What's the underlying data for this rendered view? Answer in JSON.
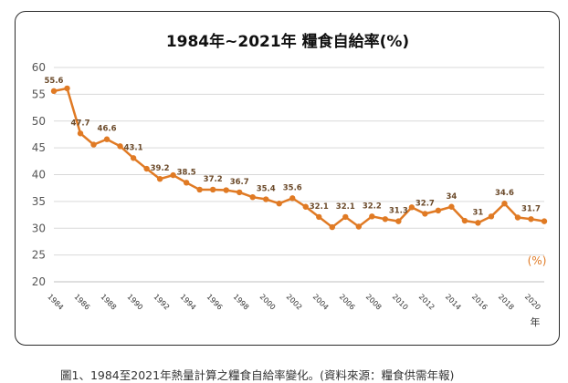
{
  "chart_data": {
    "type": "line",
    "title": "1984年~2021年  糧食自給率(%)",
    "unit": "(%)",
    "xlabel": "年",
    "ylabel": "",
    "ylim": [
      20,
      60
    ],
    "ytick_step": 5,
    "grid": true,
    "line_color": "#e07a24",
    "x": [
      1984,
      1985,
      1986,
      1987,
      1988,
      1989,
      1990,
      1991,
      1992,
      1993,
      1994,
      1995,
      1996,
      1997,
      1998,
      1999,
      2000,
      2001,
      2002,
      2003,
      2004,
      2005,
      2006,
      2007,
      2008,
      2009,
      2010,
      2011,
      2012,
      2013,
      2014,
      2015,
      2016,
      2017,
      2018,
      2019,
      2020,
      2021
    ],
    "x_tick_labels": [
      "1984",
      "1986",
      "1988",
      "1990",
      "1992",
      "1994",
      "1996",
      "1998",
      "2000",
      "2002",
      "2004",
      "2006",
      "2008",
      "2010",
      "2012",
      "2014",
      "2016",
      "2018",
      "2020"
    ],
    "series": [
      {
        "values": [
          55.6,
          56.1,
          47.7,
          45.6,
          46.6,
          45.3,
          43.1,
          41.1,
          39.2,
          39.9,
          38.5,
          37.2,
          37.2,
          37.1,
          36.7,
          35.8,
          35.4,
          34.6,
          35.6,
          34.0,
          32.1,
          30.2,
          32.1,
          30.3,
          32.2,
          31.7,
          31.3,
          33.9,
          32.7,
          33.3,
          34.0,
          31.4,
          31.0,
          32.2,
          34.6,
          32.0,
          31.7,
          31.3
        ],
        "labels": [
          {
            "x": 1984,
            "text": "55.6"
          },
          {
            "x": 1986,
            "text": "47.7"
          },
          {
            "x": 1988,
            "text": "46.6"
          },
          {
            "x": 1990,
            "text": "43.1"
          },
          {
            "x": 1992,
            "text": "39.2"
          },
          {
            "x": 1994,
            "text": "38.5"
          },
          {
            "x": 1996,
            "text": "37.2"
          },
          {
            "x": 1998,
            "text": "36.7"
          },
          {
            "x": 2000,
            "text": "35.4"
          },
          {
            "x": 2002,
            "text": "35.6"
          },
          {
            "x": 2004,
            "text": "32.1"
          },
          {
            "x": 2006,
            "text": "32.1"
          },
          {
            "x": 2008,
            "text": "32.2"
          },
          {
            "x": 2010,
            "text": "31.3"
          },
          {
            "x": 2012,
            "text": "32.7"
          },
          {
            "x": 2014,
            "text": "34"
          },
          {
            "x": 2016,
            "text": "31"
          },
          {
            "x": 2018,
            "text": "34.6"
          },
          {
            "x": 2020,
            "text": "31.7"
          }
        ]
      }
    ]
  },
  "caption": "圖1、1984至2021年熱量計算之糧食自給率變化。(資料來源：糧食供需年報)"
}
